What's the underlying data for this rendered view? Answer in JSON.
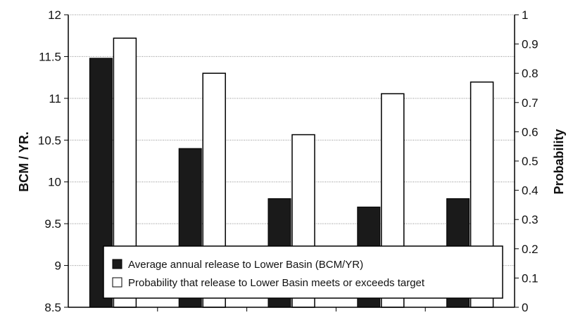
{
  "chart_data": {
    "type": "bar",
    "categories": [
      "",
      "",
      "",
      "",
      ""
    ],
    "series": [
      {
        "name": "Average annual release to Lower Basin (BCM/YR)",
        "axis": "left",
        "color": "#1a1a1a",
        "values": [
          11.48,
          10.4,
          9.8,
          9.7,
          9.8
        ]
      },
      {
        "name": "Probability that release to Lower Basin meets or exceeds target",
        "axis": "right",
        "color": "#ffffff",
        "values": [
          0.92,
          0.8,
          0.59,
          0.73,
          0.77
        ]
      }
    ],
    "ylabel": "BCM / YR.",
    "y2label": "Probability",
    "ylim": [
      8.5,
      12
    ],
    "y2lim": [
      0,
      1
    ],
    "yticks": [
      "8.5",
      "9",
      "9.5",
      "10",
      "10.5",
      "11",
      "11.5",
      "12"
    ],
    "y2ticks": [
      "0",
      "0.1",
      "0.2",
      "0.3",
      "0.4",
      "0.5",
      "0.6",
      "0.7",
      "0.8",
      "0.9",
      "1"
    ],
    "grid": true,
    "legend_position": "bottom-center, inside plot"
  }
}
